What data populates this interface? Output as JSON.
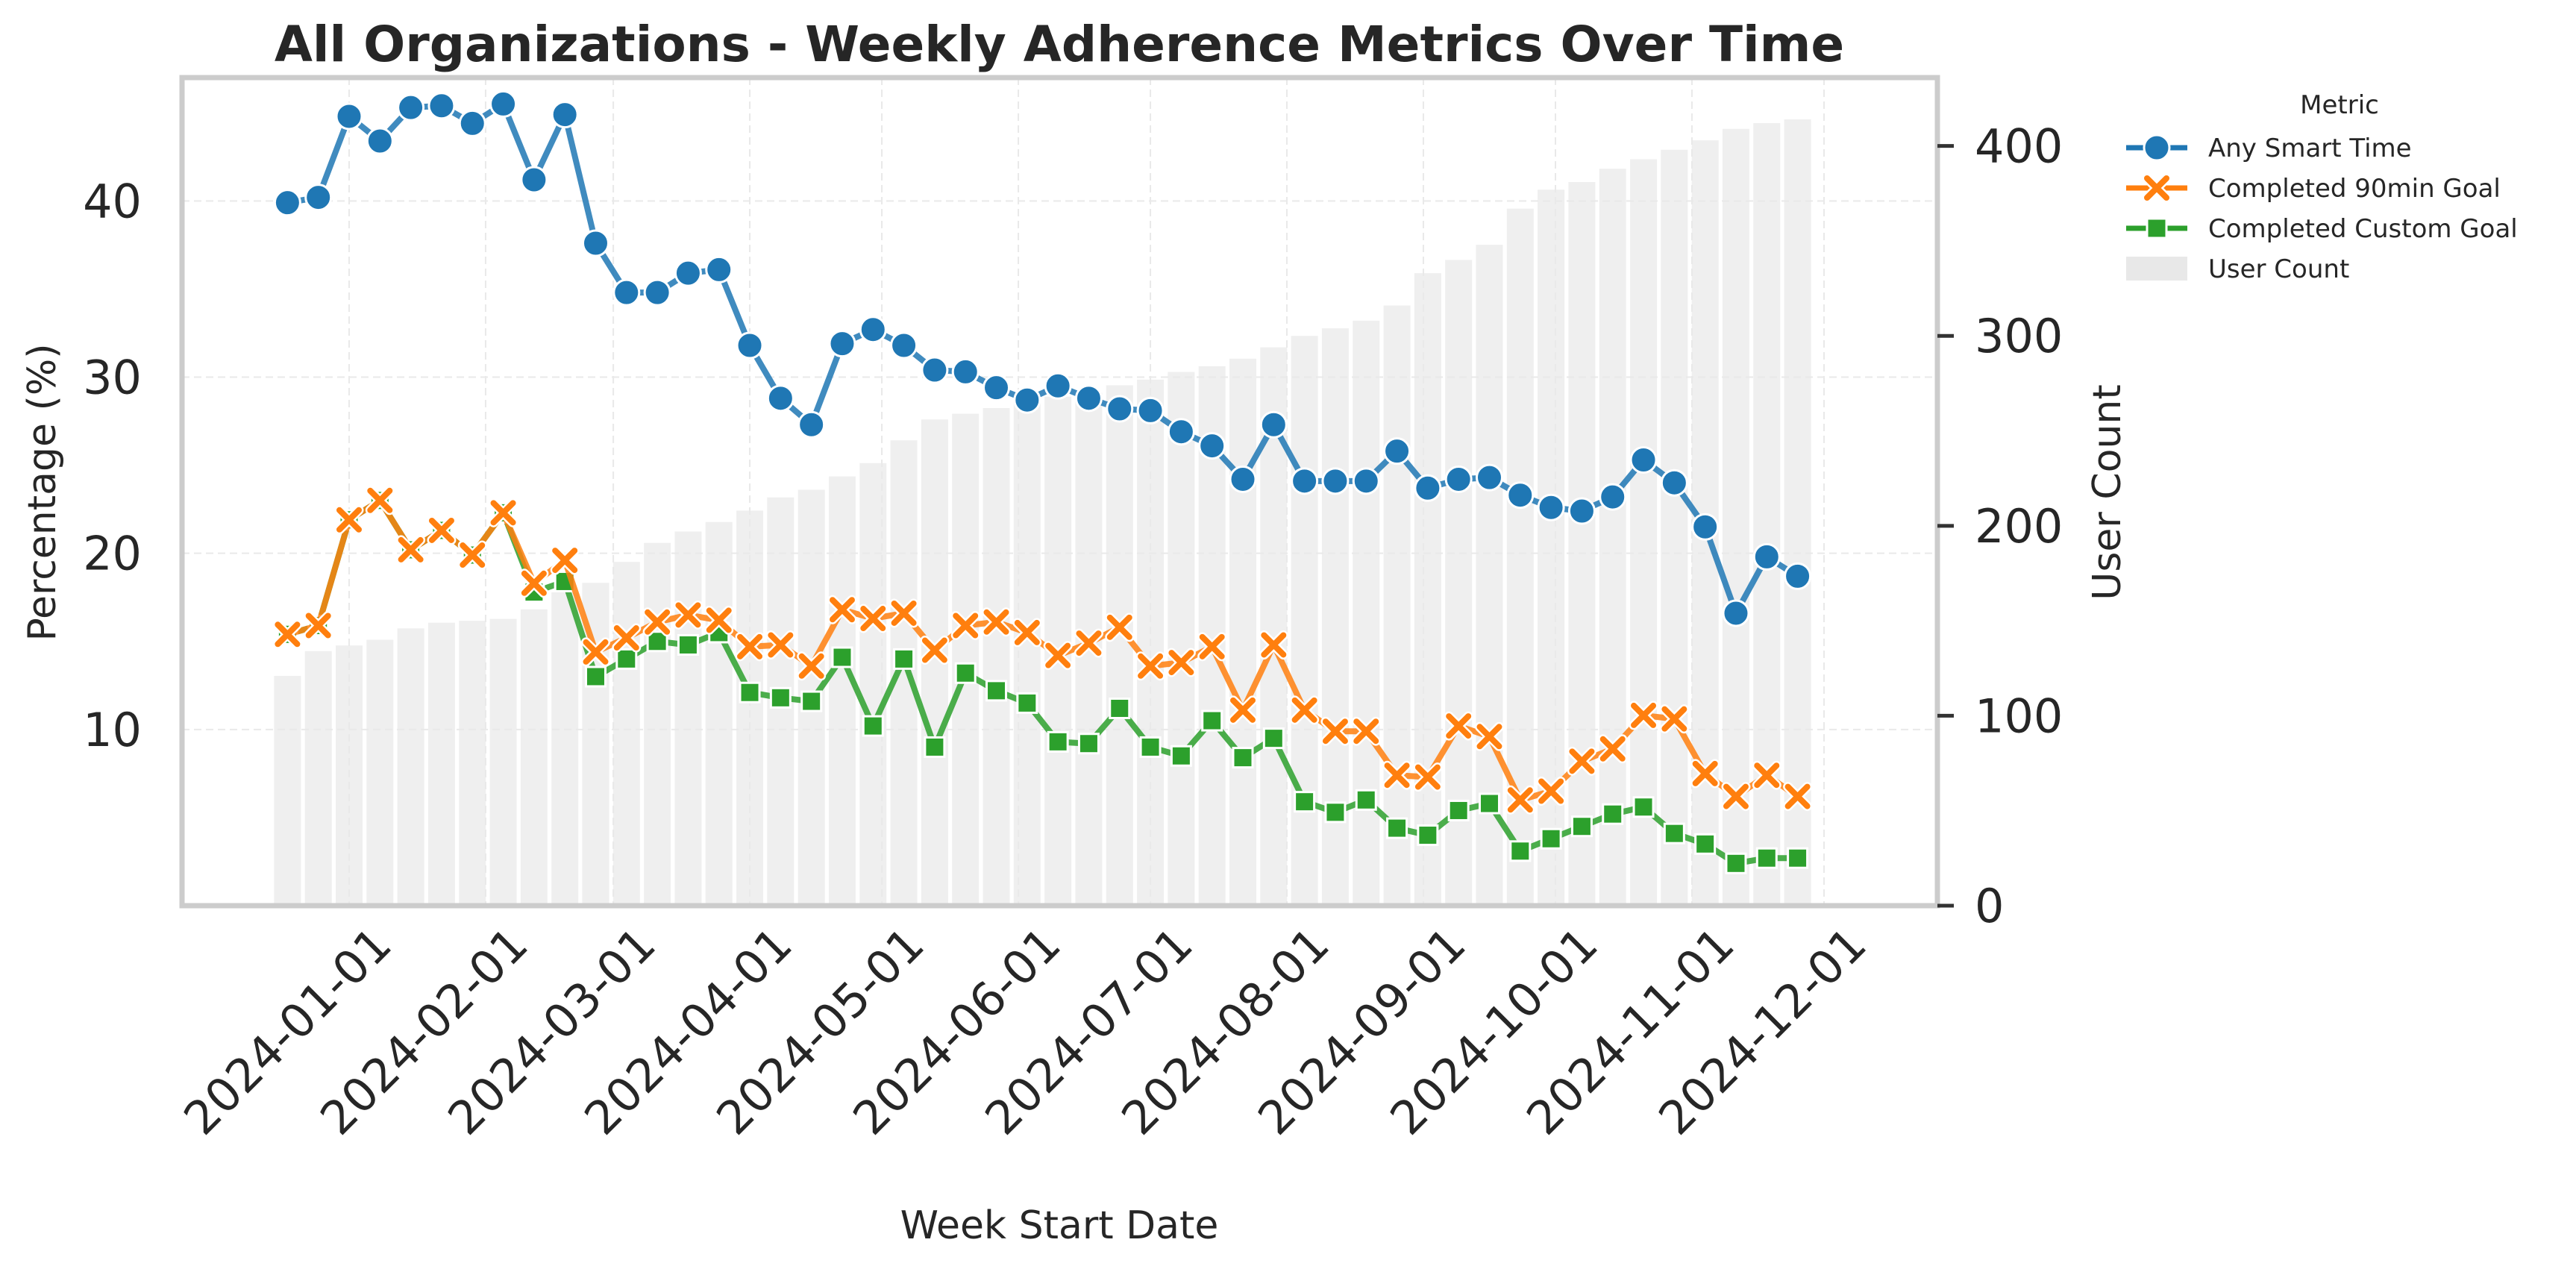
{
  "chart_data": {
    "type": "line",
    "title": "All Organizations - Weekly Adherence Metrics Over Time",
    "xlabel": "Week Start Date",
    "ylabel": "Percentage (%)",
    "ylabel_right": "User Count",
    "x_tick_labels": [
      "2024-01-01",
      "2024-02-01",
      "2024-03-01",
      "2024-04-01",
      "2024-05-01",
      "2024-06-01",
      "2024-07-01",
      "2024-08-01",
      "2024-09-01",
      "2024-10-01",
      "2024-11-01",
      "2024-12-01"
    ],
    "y_ticks": [
      10,
      20,
      30,
      40
    ],
    "y_right_ticks": [
      0,
      100,
      200,
      300,
      400
    ],
    "ylim": [
      0,
      47
    ],
    "ylim_right": [
      0,
      436
    ],
    "grid": true,
    "legend": {
      "title": "Metric",
      "placement": "outside-top-right",
      "entries": [
        "Any Smart Time",
        "Completed 90min Goal",
        "Completed Custom Goal",
        "User Count"
      ]
    },
    "x": [
      "2023-12-18",
      "2023-12-25",
      "2024-01-01",
      "2024-01-08",
      "2024-01-15",
      "2024-01-22",
      "2024-01-29",
      "2024-02-05",
      "2024-02-12",
      "2024-02-19",
      "2024-02-26",
      "2024-03-04",
      "2024-03-11",
      "2024-03-18",
      "2024-03-25",
      "2024-04-01",
      "2024-04-08",
      "2024-04-15",
      "2024-04-22",
      "2024-04-29",
      "2024-05-06",
      "2024-05-13",
      "2024-05-20",
      "2024-05-27",
      "2024-06-03",
      "2024-06-10",
      "2024-06-17",
      "2024-06-24",
      "2024-07-01",
      "2024-07-08",
      "2024-07-15",
      "2024-07-22",
      "2024-07-29",
      "2024-08-05",
      "2024-08-12",
      "2024-08-19",
      "2024-08-26",
      "2024-09-02",
      "2024-09-09",
      "2024-09-16",
      "2024-09-23",
      "2024-09-30",
      "2024-10-07",
      "2024-10-14",
      "2024-10-21",
      "2024-10-28",
      "2024-11-04",
      "2024-11-11",
      "2024-11-18",
      "2024-11-25"
    ],
    "series": [
      {
        "name": "Any Smart Time",
        "color": "#1f77b4",
        "marker": "circle",
        "values": [
          39.9,
          40.2,
          44.8,
          43.4,
          45.3,
          45.4,
          44.4,
          45.5,
          41.2,
          44.9,
          37.6,
          34.8,
          34.8,
          35.9,
          36.1,
          31.8,
          28.8,
          27.3,
          31.9,
          32.7,
          31.8,
          30.4,
          30.3,
          29.4,
          28.7,
          29.5,
          28.8,
          28.2,
          28.1,
          26.9,
          26.1,
          24.2,
          27.3,
          24.1,
          24.1,
          24.1,
          25.8,
          23.7,
          24.2,
          24.3,
          23.3,
          22.6,
          22.4,
          23.2,
          25.3,
          24.0,
          21.5,
          16.6,
          19.8,
          18.7
        ]
      },
      {
        "name": "Completed 90min Goal",
        "color": "#ff7f0e",
        "marker": "x",
        "values": [
          15.4,
          15.9,
          21.9,
          23.0,
          20.2,
          21.3,
          19.9,
          22.3,
          18.3,
          19.6,
          14.4,
          15.2,
          16.1,
          16.5,
          16.2,
          14.7,
          14.8,
          13.6,
          16.8,
          16.3,
          16.6,
          14.5,
          15.9,
          16.1,
          15.5,
          14.2,
          14.9,
          15.8,
          13.6,
          13.8,
          14.7,
          11.1,
          14.8,
          11.1,
          9.9,
          9.9,
          7.4,
          7.3,
          10.2,
          9.6,
          6.0,
          6.5,
          8.2,
          8.9,
          10.8,
          10.6,
          7.5,
          6.2,
          7.4,
          6.2
        ]
      },
      {
        "name": "Completed Custom Goal",
        "color": "#2ca02c",
        "marker": "square",
        "values": [
          15.4,
          15.9,
          21.9,
          23.0,
          20.2,
          21.3,
          19.9,
          22.3,
          17.8,
          18.4,
          13.0,
          14.0,
          15.0,
          14.8,
          15.5,
          12.1,
          11.8,
          11.6,
          14.1,
          10.2,
          14.0,
          9.0,
          13.2,
          12.2,
          11.5,
          9.3,
          9.2,
          11.2,
          9.0,
          8.5,
          10.5,
          8.4,
          9.5,
          5.9,
          5.3,
          6.0,
          4.4,
          4.0,
          5.4,
          5.8,
          3.1,
          3.8,
          4.5,
          5.2,
          5.6,
          4.1,
          3.5,
          2.4,
          2.7,
          2.7
        ]
      }
    ],
    "bars": {
      "name": "User Count",
      "color": "#e8e8e8",
      "values": [
        121,
        134,
        137,
        140,
        146,
        149,
        150,
        151,
        156,
        165,
        170,
        181,
        191,
        197,
        202,
        208,
        215,
        219,
        226,
        233,
        245,
        256,
        259,
        262,
        266,
        268,
        270,
        274,
        277,
        281,
        284,
        288,
        294,
        300,
        304,
        308,
        316,
        333,
        340,
        348,
        367,
        377,
        381,
        388,
        393,
        398,
        403,
        409,
        412,
        414
      ]
    }
  }
}
